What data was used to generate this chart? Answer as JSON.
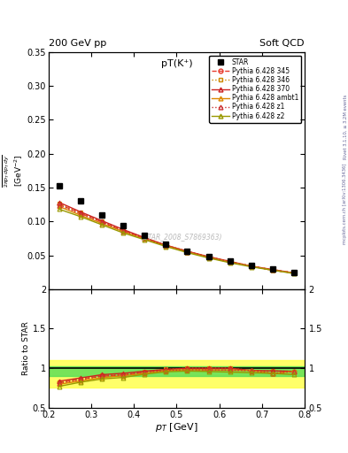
{
  "title_top_left": "200 GeV pp",
  "title_top_right": "Soft QCD",
  "plot_title": "pT(K⁺)",
  "watermark": "(STAR_2008_S7869363)",
  "right_label_top": "Rivet 3.1.10, ≥ 3.2M events",
  "right_label_bot": "mcplots.cern.ch [arXiv:1306.3436]",
  "xlabel": "p_{T} [GeV]",
  "ylabel_ratio": "Ratio to STAR",
  "star_x": [
    0.225,
    0.275,
    0.325,
    0.375,
    0.425,
    0.475,
    0.525,
    0.575,
    0.625,
    0.675,
    0.725,
    0.775
  ],
  "star_y": [
    0.153,
    0.13,
    0.11,
    0.094,
    0.079,
    0.066,
    0.056,
    0.048,
    0.041,
    0.035,
    0.03,
    0.025
  ],
  "pythia_x": [
    0.225,
    0.275,
    0.325,
    0.375,
    0.425,
    0.475,
    0.525,
    0.575,
    0.625,
    0.675,
    0.725,
    0.775
  ],
  "p345_y": [
    0.125,
    0.112,
    0.099,
    0.086,
    0.075,
    0.064,
    0.055,
    0.047,
    0.04,
    0.034,
    0.028,
    0.024
  ],
  "p346_y": [
    0.126,
    0.113,
    0.1,
    0.087,
    0.076,
    0.065,
    0.056,
    0.048,
    0.041,
    0.034,
    0.029,
    0.024
  ],
  "p370_y": [
    0.128,
    0.114,
    0.101,
    0.088,
    0.076,
    0.065,
    0.056,
    0.048,
    0.041,
    0.034,
    0.029,
    0.024
  ],
  "pambt1_y": [
    0.122,
    0.109,
    0.097,
    0.085,
    0.074,
    0.064,
    0.055,
    0.047,
    0.04,
    0.034,
    0.028,
    0.024
  ],
  "pz1_y": [
    0.124,
    0.111,
    0.099,
    0.086,
    0.075,
    0.064,
    0.055,
    0.047,
    0.04,
    0.034,
    0.028,
    0.024
  ],
  "pz2_y": [
    0.118,
    0.107,
    0.095,
    0.083,
    0.073,
    0.063,
    0.054,
    0.046,
    0.039,
    0.033,
    0.028,
    0.023
  ],
  "color_345": "#e8392a",
  "color_346": "#cc8800",
  "color_370": "#cc2222",
  "color_ambt1": "#dd8800",
  "color_z1": "#cc3333",
  "color_z2": "#999900",
  "band_yellow": [
    0.75,
    1.1
  ],
  "band_green": [
    0.9,
    1.025
  ],
  "ylim_main": [
    0.0,
    0.35
  ],
  "yticks_main": [
    0.05,
    0.1,
    0.15,
    0.2,
    0.25,
    0.3,
    0.35
  ],
  "ylim_ratio": [
    0.5,
    2.0
  ],
  "yticks_ratio": [
    0.5,
    1.0,
    1.5,
    2.0
  ],
  "xlim": [
    0.2,
    0.8
  ],
  "xticks": [
    0.2,
    0.3,
    0.4,
    0.5,
    0.6,
    0.7,
    0.8
  ]
}
